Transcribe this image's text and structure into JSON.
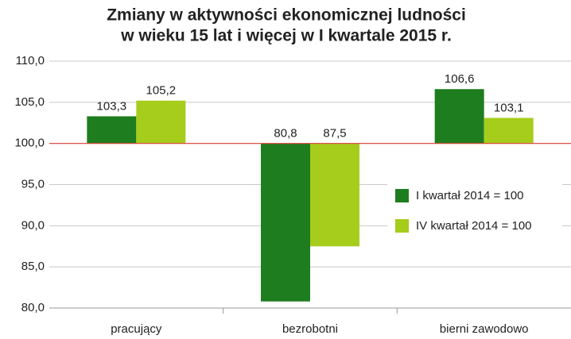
{
  "chart_data": {
    "type": "bar",
    "title": [
      "Zmiany w aktywności ekonomicznej ludności",
      "w wieku 15 lat i więcej w I kwartale 2015 r."
    ],
    "categories": [
      "pracujący",
      "bezrobotni",
      "bierni zawodowo"
    ],
    "series": [
      {
        "name": "I kwartał 2014 = 100",
        "color": "#1e7d1e",
        "values": [
          103.3,
          80.8,
          106.6
        ],
        "value_labels": [
          "103,3",
          "80,8",
          "106,6"
        ]
      },
      {
        "name": "IV kwartał 2014 = 100",
        "color": "#a6cc1c",
        "values": [
          105.2,
          87.5,
          103.1
        ],
        "value_labels": [
          "105,2",
          "87,5",
          "103,1"
        ]
      }
    ],
    "ylim": [
      80,
      110
    ],
    "yticks": [
      {
        "value": 80,
        "label": "80,0"
      },
      {
        "value": 85,
        "label": "85,0"
      },
      {
        "value": 90,
        "label": "90,0"
      },
      {
        "value": 95,
        "label": "95,0"
      },
      {
        "value": 100,
        "label": "100,0"
      },
      {
        "value": 105,
        "label": "105,0"
      },
      {
        "value": 110,
        "label": "110,0"
      }
    ],
    "baseline": 100,
    "baseline_color": "#e0403a",
    "grid": true,
    "legend": "right"
  }
}
